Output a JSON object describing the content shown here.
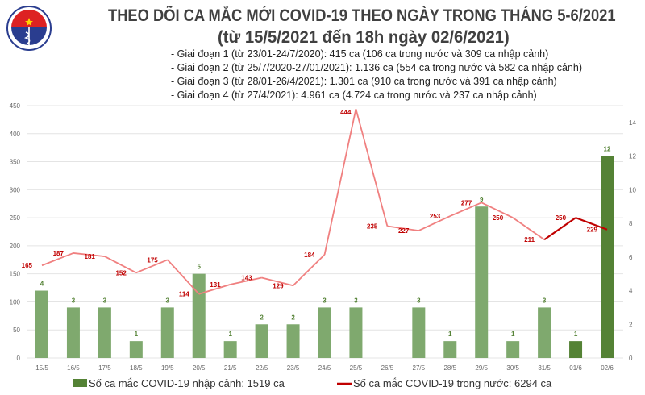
{
  "header": {
    "logo_text": "BỘ Y TẾ — MINISTRY OF HEALTH",
    "title": "THEO DÕI CA MẮC MỚI COVID-19 THEO NGÀY TRONG THÁNG 5-6/2021",
    "subtitle": "(từ 15/5/2021 đến 18h ngày 02/6/2021)",
    "bullets": [
      "- Giai đoạn 1 (từ 23/01-24/7/2020): 415 ca (106 ca trong nước và 309 ca nhập cảnh)",
      "- Giai đoạn 2 (từ 25/7/2020-27/01/2021): 1.136 ca (554 ca trong nước và 582 ca nhập cảnh)",
      "- Giai đoạn 3 (từ 28/01-26/4/2021): 1.301 ca (910 ca trong nước và 391 ca nhập cảnh)",
      "- Giai đoạn 4 (từ 27/4/2021): 4.961 ca (4.724 ca trong nước và 237 ca nhập cảnh)"
    ]
  },
  "chart_data": {
    "type": "bar+line",
    "categories": [
      "15/5",
      "16/5",
      "17/5",
      "18/5",
      "19/5",
      "20/5",
      "21/5",
      "22/5",
      "23/5",
      "24/5",
      "25/5",
      "26/5",
      "27/5",
      "28/5",
      "29/5",
      "30/5",
      "31/5",
      "01/6",
      "02/6"
    ],
    "series": [
      {
        "name": "Số ca mắc COVID-19 nhập cảnh: 1519 ca",
        "type": "bar",
        "axis": "right",
        "color": "#7fa96e",
        "highlight_color": "#548235",
        "values": [
          4,
          3,
          3,
          1,
          3,
          5,
          1,
          2,
          2,
          3,
          3,
          0,
          3,
          1,
          9,
          1,
          3,
          1,
          12
        ]
      },
      {
        "name": "Số ca mắc COVID-19 trong nước: 6294 ca",
        "type": "line",
        "axis": "left",
        "color": "#f08080",
        "highlight_color": "#c00000",
        "values": [
          165,
          187,
          181,
          152,
          175,
          114,
          131,
          143,
          129,
          184,
          444,
          235,
          227,
          253,
          277,
          250,
          211,
          250,
          229
        ]
      }
    ],
    "highlighted_last": 2,
    "y_left": {
      "range": [
        0,
        450
      ],
      "ticks": [
        "0",
        "50",
        "100",
        "150",
        "200",
        "250",
        "300",
        "350",
        "400",
        "450"
      ]
    },
    "y_right": {
      "range": [
        0,
        15
      ],
      "ticks": [
        "0",
        "2",
        "4",
        "6",
        "8",
        "10",
        "12",
        "14"
      ]
    },
    "grid": true,
    "legend": "bottom",
    "label_color_line": "#c00000",
    "label_color_bar": "#548235"
  }
}
